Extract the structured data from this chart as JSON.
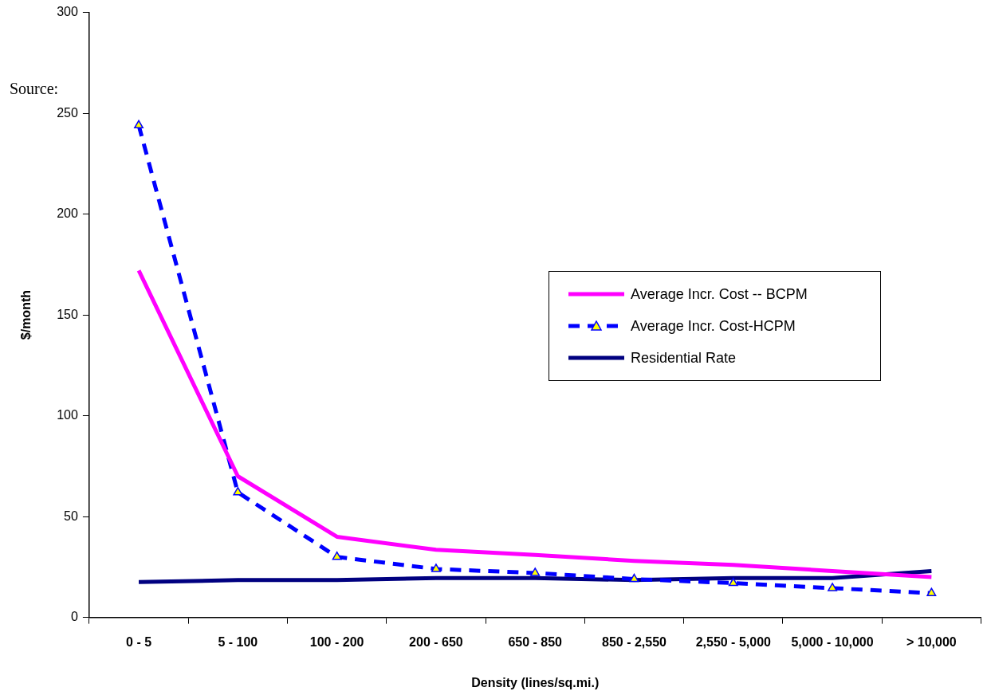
{
  "chart_data": {
    "type": "line",
    "xlabel": "Density (lines/sq.mi.)",
    "ylabel": "$/month",
    "categories": [
      "0 - 5",
      "5 - 100",
      "100 - 200",
      "200 - 650",
      "650 - 850",
      "850 - 2,550",
      "2,550 - 5,000",
      "5,000 - 10,000",
      "> 10,000"
    ],
    "series": [
      {
        "name": "Average Incr. Cost -- BCPM",
        "color": "#ff00ff",
        "line_style": "solid",
        "values": [
          172,
          70,
          40,
          33.5,
          31,
          28,
          26,
          23,
          20
        ]
      },
      {
        "name": "Average Incr. Cost-HCPM",
        "color": "#0000ff",
        "line_style": "dashed",
        "marker": "triangle",
        "values": [
          244,
          62,
          30,
          24,
          22,
          19,
          17,
          14.5,
          12
        ]
      },
      {
        "name": "Residential Rate",
        "color": "#000080",
        "line_style": "solid",
        "values": [
          17.5,
          18.5,
          18.5,
          19.5,
          19.5,
          18.5,
          19.5,
          19.5,
          23
        ]
      }
    ],
    "ylim": [
      0,
      300
    ],
    "yticks": [
      0,
      50,
      100,
      150,
      200,
      250,
      300
    ],
    "grid": false,
    "legend": "right",
    "annotations": [
      "Source:"
    ]
  }
}
